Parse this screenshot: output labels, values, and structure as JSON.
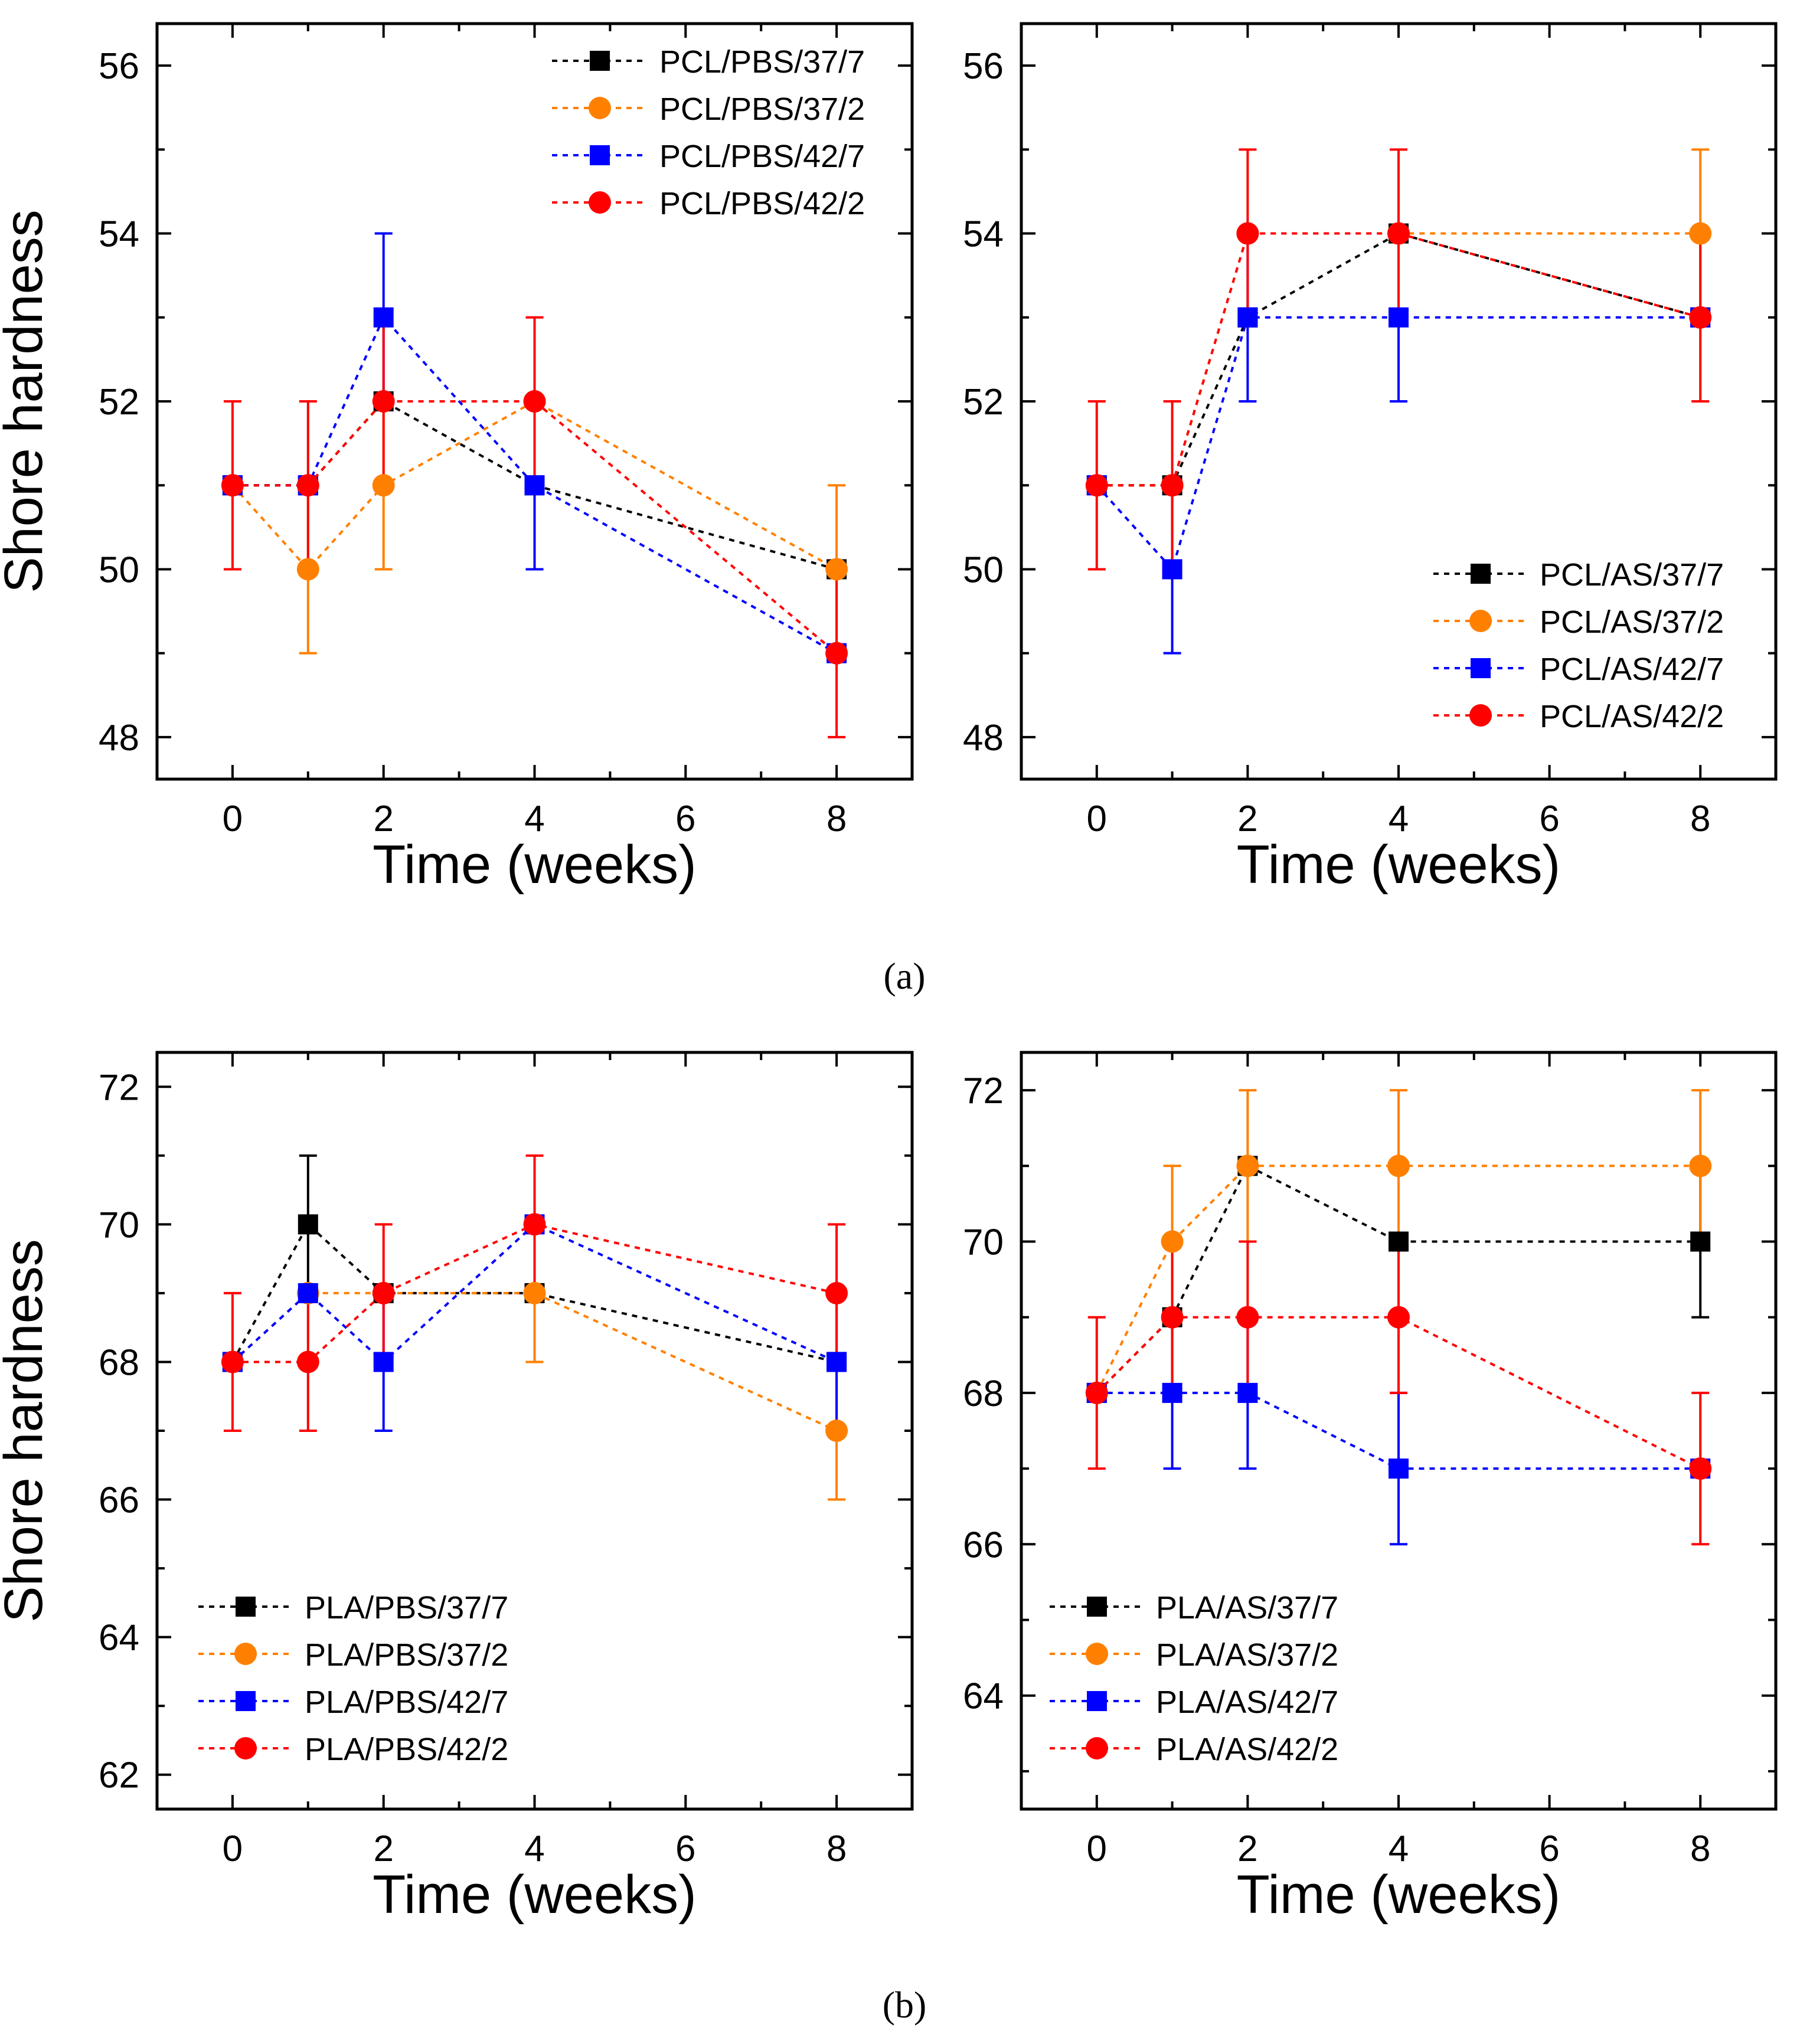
{
  "figure": {
    "panel_labels": [
      "(a)",
      "(b)"
    ]
  },
  "chart_data": [
    {
      "type": "line",
      "panel": "a",
      "position": "top-left",
      "title": "",
      "xlabel": "Time (weeks)",
      "ylabel": "Shore hardness",
      "xlim": [
        -1,
        9
      ],
      "ylim": [
        47.5,
        56.5
      ],
      "xticks": [
        0,
        2,
        4,
        6,
        8
      ],
      "yticks": [
        48,
        50,
        52,
        54,
        56
      ],
      "x": [
        0,
        1,
        2,
        4,
        8
      ],
      "legend_position": "top-right",
      "series": [
        {
          "name": "PCL/PBS/37/7",
          "marker": "square",
          "color": "#000000",
          "values": [
            51,
            51,
            52,
            51,
            50
          ],
          "errors": [
            0,
            0,
            0,
            0,
            0
          ]
        },
        {
          "name": "PCL/PBS/37/2",
          "marker": "circle",
          "color": "#FF8000",
          "values": [
            51,
            50,
            51,
            52,
            50
          ],
          "errors": [
            0,
            1,
            1,
            0,
            1
          ]
        },
        {
          "name": "PCL/PBS/42/7",
          "marker": "square",
          "color": "#0000FF",
          "values": [
            51,
            51,
            53,
            51,
            49
          ],
          "errors": [
            0,
            0,
            1,
            1,
            0
          ]
        },
        {
          "name": "PCL/PBS/42/2",
          "marker": "circle",
          "color": "#FF0000",
          "values": [
            51,
            51,
            52,
            52,
            49
          ],
          "errors": [
            1,
            1,
            1,
            1,
            1
          ]
        }
      ]
    },
    {
      "type": "line",
      "panel": "a",
      "position": "top-right",
      "title": "",
      "xlabel": "Time (weeks)",
      "ylabel": "",
      "xlim": [
        -1,
        9
      ],
      "ylim": [
        47.5,
        56.5
      ],
      "xticks": [
        0,
        2,
        4,
        6,
        8
      ],
      "yticks": [
        48,
        50,
        52,
        54,
        56
      ],
      "x": [
        0,
        1,
        2,
        4,
        8
      ],
      "legend_position": "bottom-right",
      "series": [
        {
          "name": "PCL/AS/37/7",
          "marker": "square",
          "color": "#000000",
          "values": [
            51,
            51,
            53,
            54,
            53
          ],
          "errors": [
            0,
            0,
            0,
            0,
            0
          ]
        },
        {
          "name": "PCL/AS/37/2",
          "marker": "circle",
          "color": "#FF8000",
          "values": [
            51,
            51,
            54,
            54,
            54
          ],
          "errors": [
            0,
            0,
            0,
            0,
            1
          ]
        },
        {
          "name": "PCL/AS/42/7",
          "marker": "square",
          "color": "#0000FF",
          "values": [
            51,
            50,
            53,
            53,
            53
          ],
          "errors": [
            0,
            1,
            1,
            1,
            0
          ]
        },
        {
          "name": "PCL/AS/42/2",
          "marker": "circle",
          "color": "#FF0000",
          "values": [
            51,
            51,
            54,
            54,
            53
          ],
          "errors": [
            1,
            1,
            1,
            1,
            1
          ]
        }
      ]
    },
    {
      "type": "line",
      "panel": "b",
      "position": "bottom-left",
      "title": "",
      "xlabel": "Time (weeks)",
      "ylabel": "Shore hardness",
      "xlim": [
        -1,
        9
      ],
      "ylim": [
        61.5,
        72.5
      ],
      "xticks": [
        0,
        2,
        4,
        6,
        8
      ],
      "yticks": [
        62,
        64,
        66,
        68,
        70,
        72
      ],
      "x": [
        0,
        1,
        2,
        4,
        8
      ],
      "legend_position": "bottom-left",
      "series": [
        {
          "name": "PLA/PBS/37/7",
          "marker": "square",
          "color": "#000000",
          "values": [
            68,
            70,
            69,
            69,
            68
          ],
          "errors": [
            0,
            1,
            0,
            0,
            0
          ]
        },
        {
          "name": "PLA/PBS/37/2",
          "marker": "circle",
          "color": "#FF8000",
          "values": [
            68,
            69,
            69,
            69,
            67
          ],
          "errors": [
            0,
            0,
            0,
            1,
            1
          ]
        },
        {
          "name": "PLA/PBS/42/7",
          "marker": "square",
          "color": "#0000FF",
          "values": [
            68,
            69,
            68,
            70,
            68
          ],
          "errors": [
            0,
            0,
            1,
            0,
            1
          ]
        },
        {
          "name": "PLA/PBS/42/2",
          "marker": "circle",
          "color": "#FF0000",
          "values": [
            68,
            68,
            69,
            70,
            69
          ],
          "errors": [
            1,
            1,
            1,
            1,
            1
          ]
        }
      ]
    },
    {
      "type": "line",
      "panel": "b",
      "position": "bottom-right",
      "title": "",
      "xlabel": "Time (weeks)",
      "ylabel": "",
      "xlim": [
        -1,
        9
      ],
      "ylim": [
        62.5,
        72.5
      ],
      "xticks": [
        0,
        2,
        4,
        6,
        8
      ],
      "yticks": [
        64,
        66,
        68,
        70,
        72
      ],
      "x": [
        0,
        1,
        2,
        4,
        8
      ],
      "legend_position": "bottom-left",
      "series": [
        {
          "name": "PLA/AS/37/7",
          "marker": "square",
          "color": "#000000",
          "values": [
            68,
            69,
            71,
            70,
            70
          ],
          "errors": [
            0,
            0,
            0,
            0,
            1
          ]
        },
        {
          "name": "PLA/AS/37/2",
          "marker": "circle",
          "color": "#FF8000",
          "values": [
            68,
            70,
            71,
            71,
            71
          ],
          "errors": [
            0,
            1,
            1,
            1,
            1
          ]
        },
        {
          "name": "PLA/AS/42/7",
          "marker": "square",
          "color": "#0000FF",
          "values": [
            68,
            68,
            68,
            67,
            67
          ],
          "errors": [
            0,
            1,
            1,
            1,
            0
          ]
        },
        {
          "name": "PLA/AS/42/2",
          "marker": "circle",
          "color": "#FF0000",
          "values": [
            68,
            69,
            69,
            69,
            67
          ],
          "errors": [
            1,
            1,
            1,
            1,
            1
          ]
        }
      ]
    }
  ]
}
